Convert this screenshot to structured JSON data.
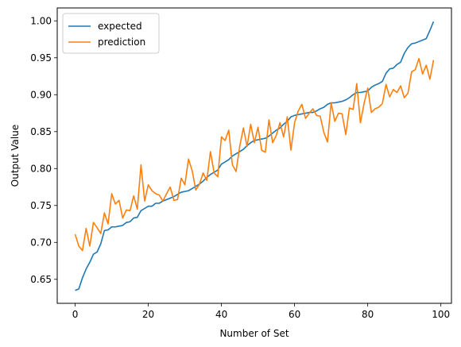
{
  "chart_data": {
    "type": "line",
    "title": "",
    "xlabel": "Number of Set",
    "ylabel": "Output Value",
    "xlim": [
      -4.9,
      102.9
    ],
    "ylim": [
      0.6175,
      1.0175
    ],
    "xticks": [
      0,
      20,
      40,
      60,
      80,
      100
    ],
    "yticks": [
      0.65,
      0.7,
      0.75,
      0.8,
      0.85,
      0.9,
      0.95,
      1.0
    ],
    "xtick_labels": [
      "0",
      "20",
      "40",
      "60",
      "80",
      "100"
    ],
    "ytick_labels": [
      "0.65",
      "0.70",
      "0.75",
      "0.80",
      "0.85",
      "0.90",
      "0.95",
      "1.00"
    ],
    "grid": false,
    "legend_position": "top-left",
    "x": [
      0,
      1,
      2,
      3,
      4,
      5,
      6,
      7,
      8,
      9,
      10,
      11,
      12,
      13,
      14,
      15,
      16,
      17,
      18,
      19,
      20,
      21,
      22,
      23,
      24,
      25,
      26,
      27,
      28,
      29,
      30,
      31,
      32,
      33,
      34,
      35,
      36,
      37,
      38,
      39,
      40,
      41,
      42,
      43,
      44,
      45,
      46,
      47,
      48,
      49,
      50,
      51,
      52,
      53,
      54,
      55,
      56,
      57,
      58,
      59,
      60,
      61,
      62,
      63,
      64,
      65,
      66,
      67,
      68,
      69,
      70,
      71,
      72,
      73,
      74,
      75,
      76,
      77,
      78,
      79,
      80,
      81,
      82,
      83,
      84,
      85,
      86,
      87,
      88,
      89,
      90,
      91,
      92,
      93,
      94,
      95,
      96,
      97,
      98
    ],
    "series": [
      {
        "name": "expected",
        "color": "#1f77b4",
        "values": [
          0.635,
          0.637,
          0.652,
          0.664,
          0.673,
          0.684,
          0.687,
          0.698,
          0.716,
          0.717,
          0.721,
          0.721,
          0.722,
          0.723,
          0.727,
          0.728,
          0.733,
          0.734,
          0.743,
          0.746,
          0.749,
          0.749,
          0.753,
          0.753,
          0.756,
          0.758,
          0.76,
          0.762,
          0.765,
          0.768,
          0.769,
          0.77,
          0.773,
          0.776,
          0.779,
          0.783,
          0.788,
          0.792,
          0.795,
          0.798,
          0.806,
          0.809,
          0.812,
          0.817,
          0.82,
          0.823,
          0.826,
          0.831,
          0.835,
          0.838,
          0.839,
          0.84,
          0.841,
          0.844,
          0.848,
          0.852,
          0.855,
          0.86,
          0.864,
          0.87,
          0.872,
          0.873,
          0.874,
          0.875,
          0.876,
          0.876,
          0.878,
          0.881,
          0.883,
          0.887,
          0.889,
          0.889,
          0.89,
          0.891,
          0.893,
          0.896,
          0.9,
          0.903,
          0.903,
          0.904,
          0.905,
          0.91,
          0.913,
          0.915,
          0.918,
          0.929,
          0.935,
          0.936,
          0.941,
          0.944,
          0.956,
          0.964,
          0.969,
          0.97,
          0.972,
          0.974,
          0.976,
          0.987,
          0.999
        ]
      },
      {
        "name": "prediction",
        "color": "#ff7f0e",
        "values": [
          0.711,
          0.695,
          0.689,
          0.719,
          0.695,
          0.727,
          0.72,
          0.712,
          0.74,
          0.725,
          0.766,
          0.752,
          0.757,
          0.733,
          0.744,
          0.743,
          0.763,
          0.745,
          0.805,
          0.756,
          0.778,
          0.77,
          0.766,
          0.764,
          0.756,
          0.766,
          0.775,
          0.757,
          0.758,
          0.787,
          0.778,
          0.813,
          0.797,
          0.771,
          0.779,
          0.794,
          0.784,
          0.823,
          0.794,
          0.789,
          0.843,
          0.838,
          0.852,
          0.805,
          0.796,
          0.83,
          0.855,
          0.83,
          0.86,
          0.835,
          0.856,
          0.825,
          0.822,
          0.866,
          0.835,
          0.845,
          0.862,
          0.843,
          0.87,
          0.825,
          0.862,
          0.878,
          0.887,
          0.868,
          0.875,
          0.881,
          0.872,
          0.871,
          0.849,
          0.836,
          0.889,
          0.864,
          0.875,
          0.874,
          0.846,
          0.882,
          0.88,
          0.915,
          0.862,
          0.888,
          0.909,
          0.876,
          0.881,
          0.883,
          0.888,
          0.914,
          0.897,
          0.907,
          0.903,
          0.912,
          0.896,
          0.902,
          0.931,
          0.934,
          0.949,
          0.928,
          0.94,
          0.921,
          0.947
        ]
      }
    ]
  }
}
